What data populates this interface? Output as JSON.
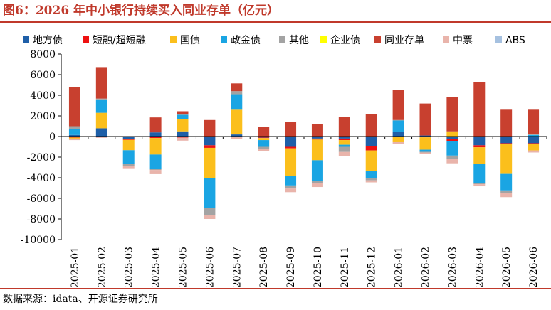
{
  "title": "图6：2026 年中小银行持续买入同业存单（亿元）",
  "source": "数据来源：idata、开源证券研究所",
  "chart_data": {
    "type": "bar",
    "stacked": true,
    "categories": [
      "2025-01",
      "2025-02",
      "2025-03",
      "2025-04",
      "2025-05",
      "2025-06",
      "2025-07",
      "2025-08",
      "2025-09",
      "2025-10",
      "2025-11",
      "2025-12",
      "2026-01",
      "2026-02",
      "2026-03",
      "2026-04",
      "2026-05",
      "2026-06"
    ],
    "ylim": [
      -10000,
      8000
    ],
    "yticks": [
      -10000,
      -8000,
      -6000,
      -4000,
      -2000,
      0,
      2000,
      4000,
      6000,
      8000
    ],
    "legend_position": "top",
    "grid": false,
    "series": [
      {
        "name": "地方债",
        "color": "#1f5fa8",
        "values": [
          150,
          800,
          -250,
          400,
          500,
          -850,
          200,
          -100,
          -1000,
          -200,
          -200,
          -950,
          450,
          100,
          -250,
          -850,
          -650,
          -650
        ]
      },
      {
        "name": "短融/超短融",
        "color": "#ee1111",
        "values": [
          -100,
          -80,
          -80,
          -150,
          -100,
          -250,
          -80,
          -50,
          -150,
          -100,
          -150,
          -400,
          -50,
          -80,
          -200,
          -200,
          -80,
          -50
        ]
      },
      {
        "name": "国债",
        "color": "#fbbf1c",
        "values": [
          -100,
          1500,
          -1000,
          -1600,
          1200,
          -2900,
          2400,
          -200,
          -2700,
          -2000,
          -450,
          -2000,
          -500,
          -1200,
          500,
          -1600,
          -2900,
          -650
        ]
      },
      {
        "name": "政金债",
        "color": "#1aa5e3",
        "values": [
          550,
          1300,
          -1300,
          -1400,
          400,
          -2900,
          1500,
          -650,
          -900,
          -2000,
          -200,
          -700,
          1100,
          -200,
          -1400,
          -1900,
          -1600,
          150
        ]
      },
      {
        "name": "其他",
        "color": "#a3a3a3",
        "values": [
          300,
          80,
          -250,
          -100,
          100,
          -700,
          300,
          -200,
          -300,
          -200,
          -500,
          -200,
          50,
          -80,
          -300,
          -80,
          -250,
          100
        ]
      },
      {
        "name": "企业债",
        "color": "#ffff00",
        "values": [
          0,
          0,
          0,
          0,
          0,
          0,
          0,
          0,
          0,
          0,
          0,
          0,
          0,
          0,
          0,
          0,
          0,
          0
        ]
      },
      {
        "name": "同业存单",
        "color": "#c8402f",
        "values": [
          3800,
          3050,
          0,
          1450,
          250,
          1600,
          750,
          900,
          1400,
          1200,
          1900,
          2200,
          2900,
          3100,
          3300,
          5300,
          2600,
          2350
        ]
      },
      {
        "name": "中票",
        "color": "#e9b4ab",
        "values": [
          -150,
          -50,
          -200,
          -400,
          -300,
          -400,
          -150,
          -200,
          -350,
          -400,
          -400,
          -200,
          -150,
          -150,
          -450,
          -200,
          -400,
          -200
        ]
      },
      {
        "name": "ABS",
        "color": "#a6c1e0",
        "values": [
          0,
          0,
          0,
          0,
          0,
          0,
          0,
          0,
          0,
          0,
          0,
          0,
          0,
          0,
          0,
          0,
          0,
          0
        ]
      }
    ]
  }
}
